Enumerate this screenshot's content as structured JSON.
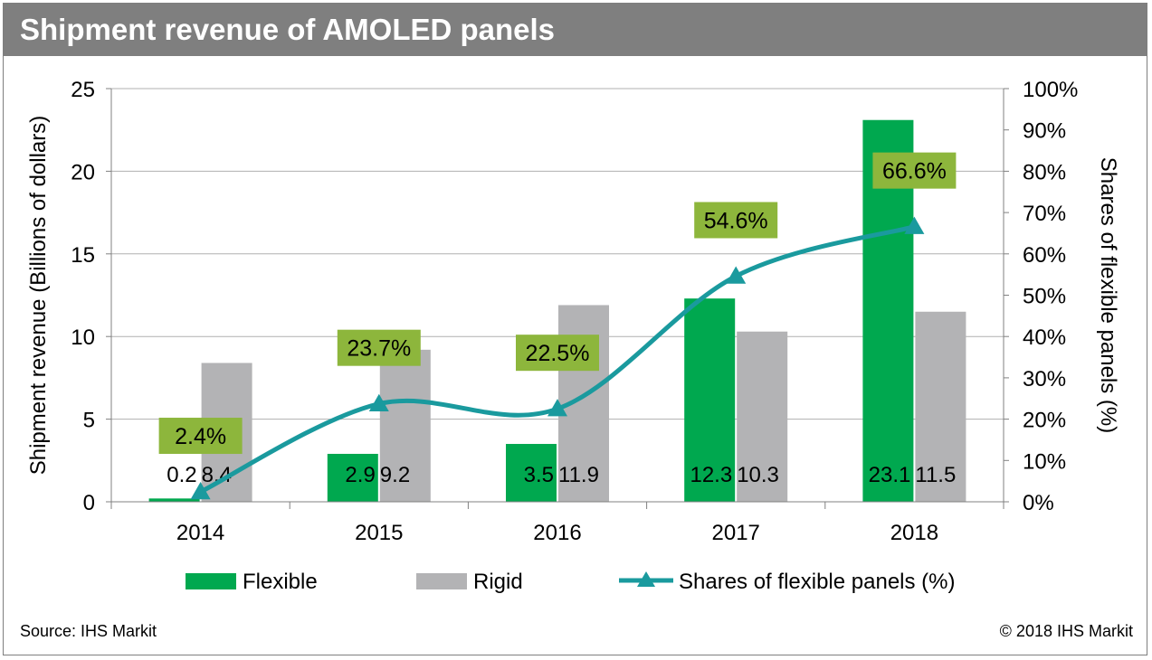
{
  "title": "Shipment revenue of AMOLED panels",
  "source": "Source: IHS Markit",
  "copyright": "© 2018 IHS Markit",
  "colors": {
    "flexible": "#00a84f",
    "rigid": "#b3b3b5",
    "share_line": "#1a9a9e",
    "share_label_bg": "#8db63c",
    "title_bar": "#7f7f7f"
  },
  "chart_data": {
    "type": "bar",
    "categories": [
      "2014",
      "2015",
      "2016",
      "2017",
      "2018"
    ],
    "series": [
      {
        "name": "Flexible",
        "values": [
          0.2,
          2.9,
          3.5,
          12.3,
          23.1
        ],
        "labels": [
          "0.2",
          "2.9",
          "3.5",
          "12.3",
          "23.1"
        ]
      },
      {
        "name": "Rigid",
        "values": [
          8.4,
          9.2,
          11.9,
          10.3,
          11.5
        ],
        "labels": [
          "8.4",
          "9.2",
          "11.9",
          "10.3",
          "11.5"
        ]
      }
    ],
    "line_series": {
      "name": "Shares of flexible panels (%)",
      "axis": "right",
      "marker": "triangle",
      "values": [
        2.4,
        23.7,
        22.5,
        54.6,
        66.6
      ],
      "labels": [
        "2.4%",
        "23.7%",
        "22.5%",
        "54.6%",
        "66.6%"
      ]
    },
    "ylabel": "Shipment revenue (Billions of dollars)",
    "ylim": [
      0,
      25
    ],
    "yticks": [
      "0",
      "5",
      "10",
      "15",
      "20",
      "25"
    ],
    "ylabel_right": "Shares of flexible panels  (%)",
    "ylim_right": [
      0,
      100
    ],
    "yticks_right": [
      "0%",
      "10%",
      "20%",
      "30%",
      "40%",
      "50%",
      "60%",
      "70%",
      "80%",
      "90%",
      "100%"
    ],
    "grid": true,
    "legend_position": "bottom"
  }
}
